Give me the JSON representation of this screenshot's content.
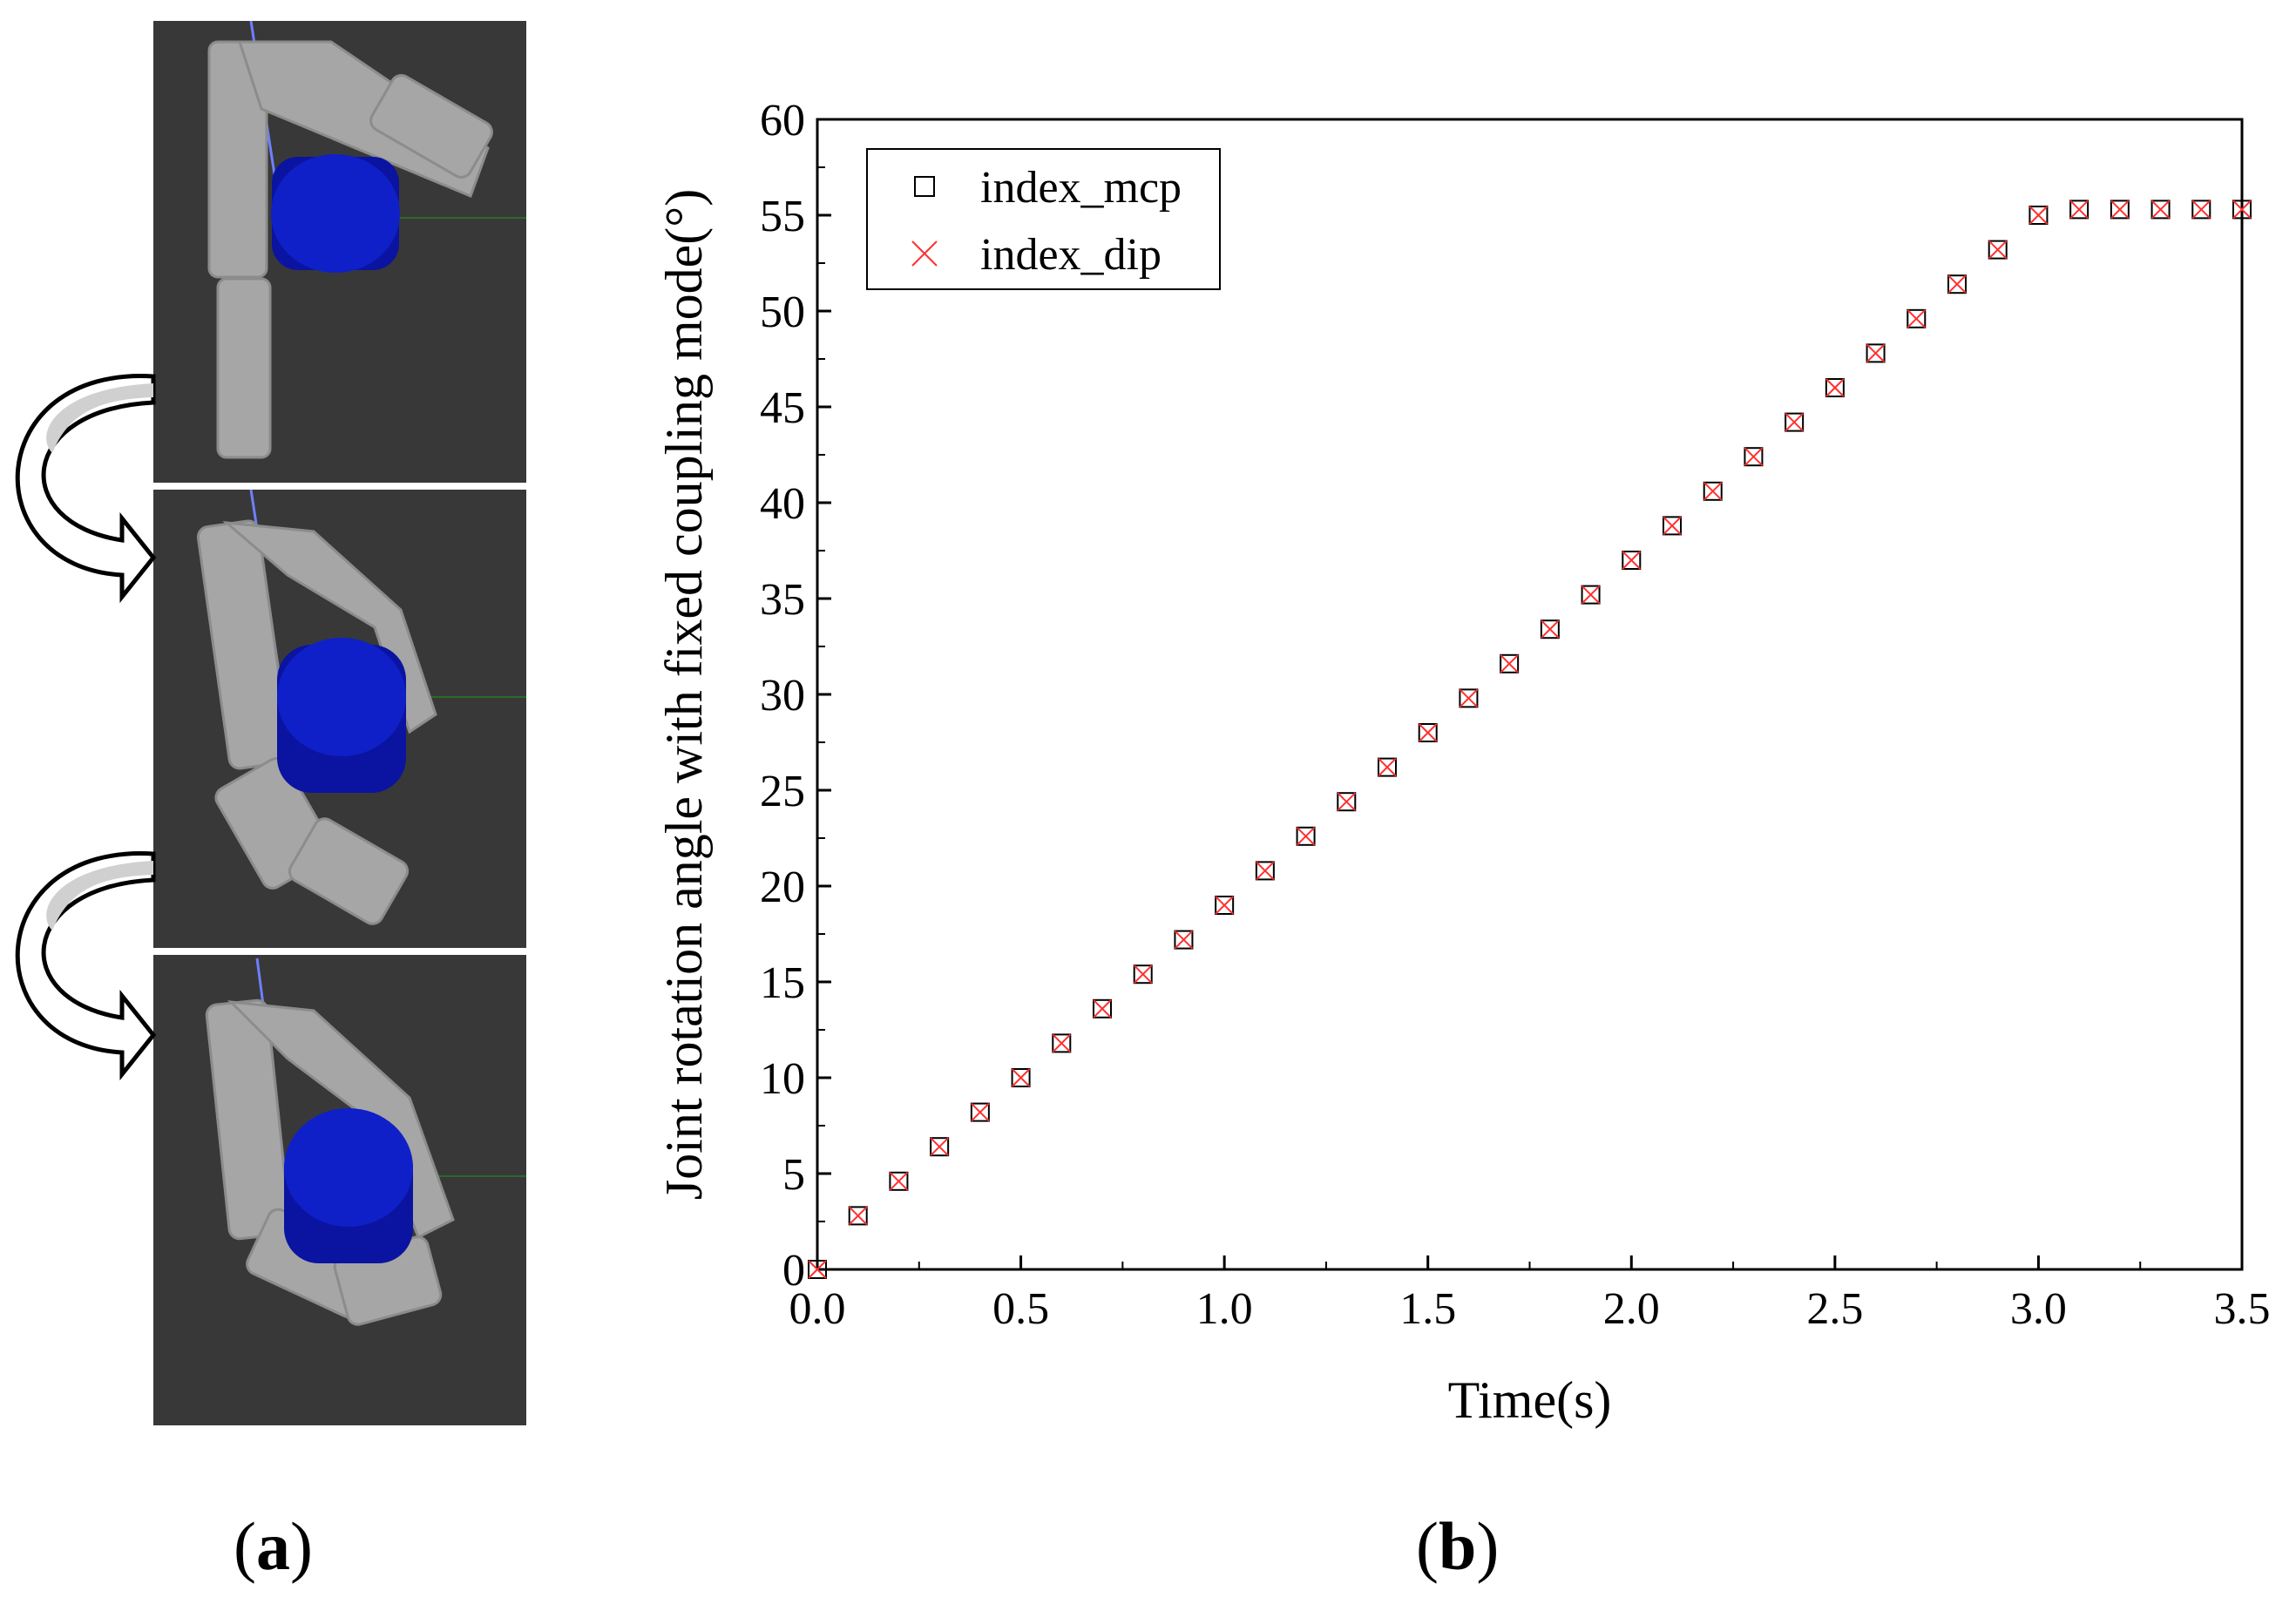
{
  "panel_a": {
    "label_open": "(",
    "label_letter": "a",
    "label_close": ")",
    "colors": {
      "background": "#383838",
      "finger": "#a6a6a6",
      "finger_edge": "#8c8c8c",
      "object": "#0a14a0",
      "object_top": "#1020c8",
      "guide_line": "#6f7fff"
    }
  },
  "panel_b": {
    "label_open": "(",
    "label_letter": "b",
    "label_close": ")"
  },
  "chart_data": {
    "type": "scatter",
    "title": "",
    "xlabel": "Time(s)",
    "ylabel": "Joint rotation angle with fixed coupling mode(°)",
    "xlim": [
      0.0,
      3.5
    ],
    "ylim": [
      0,
      60
    ],
    "xticks": [
      0.0,
      0.5,
      1.0,
      1.5,
      2.0,
      2.5,
      3.0,
      3.5
    ],
    "xtick_labels": [
      "0.0",
      "0.5",
      "1.0",
      "1.5",
      "2.0",
      "2.5",
      "3.0",
      "3.5"
    ],
    "yticks": [
      0,
      5,
      10,
      15,
      20,
      25,
      30,
      35,
      40,
      45,
      50,
      55,
      60
    ],
    "ytick_labels": [
      "0",
      "5",
      "10",
      "15",
      "20",
      "25",
      "30",
      "35",
      "40",
      "45",
      "50",
      "55",
      "60"
    ],
    "grid": false,
    "legend_position": "top-left",
    "x": [
      0.0,
      0.1,
      0.2,
      0.3,
      0.4,
      0.5,
      0.6,
      0.7,
      0.8,
      0.9,
      1.0,
      1.1,
      1.2,
      1.3,
      1.4,
      1.5,
      1.6,
      1.7,
      1.8,
      1.9,
      2.0,
      2.1,
      2.2,
      2.3,
      2.4,
      2.5,
      2.6,
      2.7,
      2.8,
      2.9,
      3.0,
      3.1,
      3.2,
      3.3,
      3.4,
      3.5
    ],
    "series": [
      {
        "name": "index_mcp",
        "marker": "square",
        "color": "#000000",
        "values": [
          0.0,
          2.8,
          4.6,
          6.4,
          8.2,
          10.0,
          11.8,
          13.6,
          15.4,
          17.2,
          19.0,
          20.8,
          22.6,
          24.4,
          26.2,
          28.0,
          29.8,
          31.6,
          33.4,
          35.2,
          37.0,
          38.8,
          40.6,
          42.4,
          44.2,
          46.0,
          47.8,
          49.6,
          51.4,
          53.2,
          55.0,
          55.3,
          55.3,
          55.3,
          55.3,
          55.3
        ]
      },
      {
        "name": "index_dip",
        "marker": "x",
        "color": "#ff3030",
        "values": [
          0.0,
          2.8,
          4.6,
          6.4,
          8.2,
          10.0,
          11.8,
          13.6,
          15.4,
          17.2,
          19.0,
          20.8,
          22.6,
          24.4,
          26.2,
          28.0,
          29.8,
          31.6,
          33.4,
          35.2,
          37.0,
          38.8,
          40.6,
          42.4,
          44.2,
          46.0,
          47.8,
          49.6,
          51.4,
          53.2,
          55.0,
          55.3,
          55.3,
          55.3,
          55.3,
          55.3
        ]
      }
    ]
  }
}
